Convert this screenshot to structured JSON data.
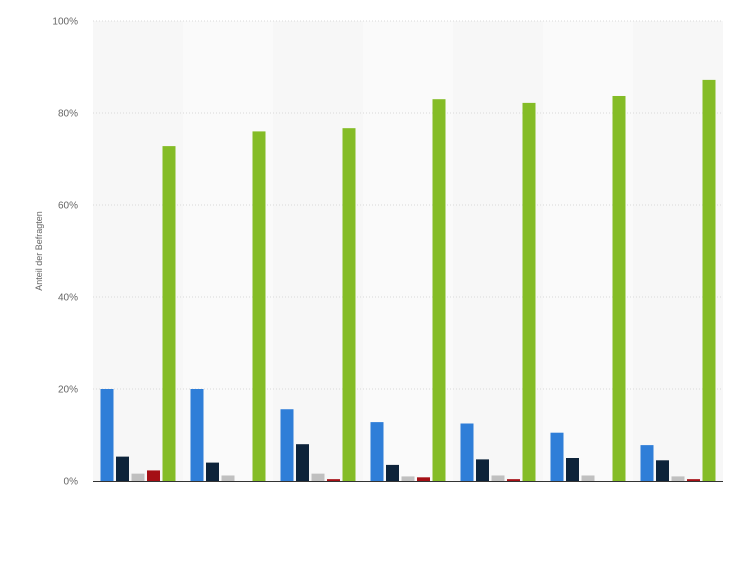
{
  "chart_data": {
    "type": "bar",
    "ylabel": "Anteil der Befragten",
    "yticks": [
      "0%",
      "20%",
      "40%",
      "60%",
      "80%",
      "100%"
    ],
    "ylim": [
      0,
      100
    ],
    "categories": [
      "",
      "",
      "",
      "",
      "",
      "",
      ""
    ],
    "grid": true,
    "series": [
      {
        "color": "#2f7ed8",
        "values": [
          20.0,
          20.0,
          15.6,
          12.8,
          12.5,
          10.5,
          7.8
        ]
      },
      {
        "color": "#0d233a",
        "values": [
          5.3,
          4.0,
          8.0,
          3.5,
          4.7,
          5.0,
          4.5
        ]
      },
      {
        "color": "#c0c0c0",
        "values": [
          1.6,
          1.2,
          1.6,
          1.0,
          1.2,
          1.2,
          1.0
        ]
      },
      {
        "color": "#a50f15",
        "values": [
          2.3,
          0.0,
          0.4,
          0.8,
          0.4,
          0.0,
          0.4
        ]
      },
      {
        "color": "#84bc26",
        "values": [
          72.8,
          76.0,
          76.7,
          83.0,
          82.2,
          83.7,
          87.2
        ]
      }
    ]
  }
}
